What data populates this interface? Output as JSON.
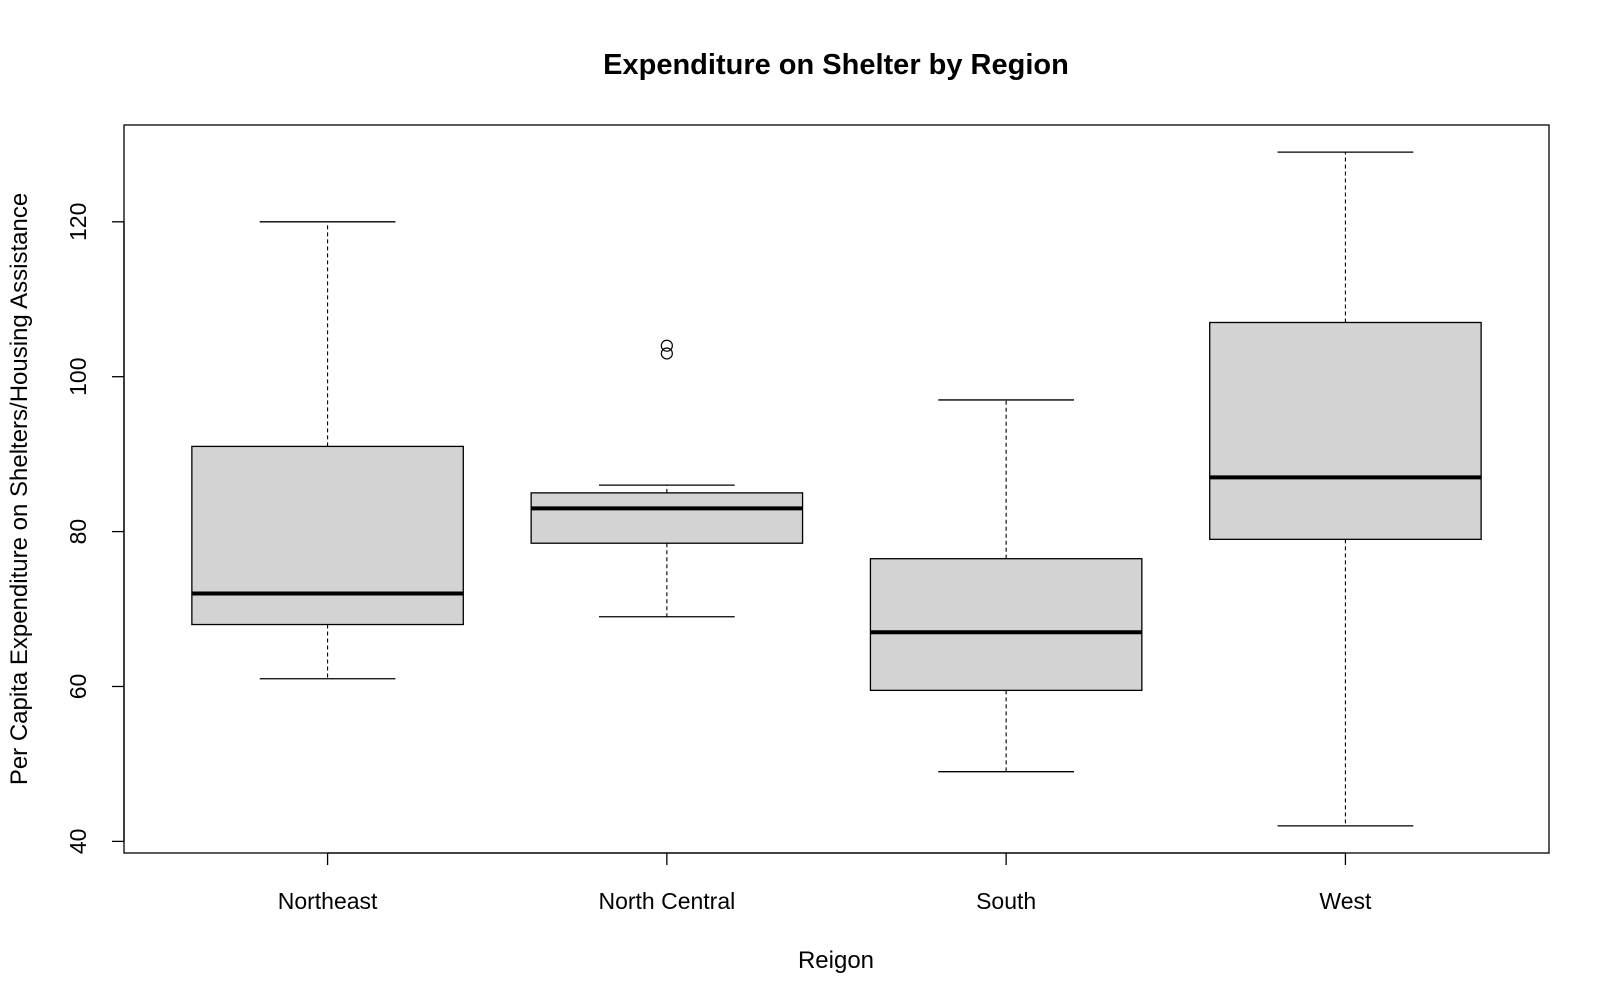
{
  "chart_data": {
    "type": "boxplot",
    "title": "Expenditure on Shelter by Region",
    "xlabel": "Reigon",
    "ylabel": "Per Capita Expenditure on Shelters/Housing Assistance",
    "ylim": [
      38.5,
      132.5
    ],
    "yticks": [
      40,
      60,
      80,
      100,
      120
    ],
    "box_fill": "#d3d3d3",
    "grid": false,
    "categories": [
      "Northeast",
      "North Central",
      "South",
      "West"
    ],
    "boxes": [
      {
        "category": "Northeast",
        "whisker_low": 61,
        "q1": 68,
        "median": 72,
        "q3": 91,
        "whisker_high": 120,
        "outliers": []
      },
      {
        "category": "North Central",
        "whisker_low": 69,
        "q1": 78.5,
        "median": 83,
        "q3": 85,
        "whisker_high": 86,
        "outliers": [
          103,
          104
        ]
      },
      {
        "category": "South",
        "whisker_low": 49,
        "q1": 59.5,
        "median": 67,
        "q3": 76.5,
        "whisker_high": 97,
        "outliers": []
      },
      {
        "category": "West",
        "whisker_low": 42,
        "q1": 79,
        "median": 87,
        "q3": 107,
        "whisker_high": 129,
        "outliers": []
      }
    ]
  }
}
